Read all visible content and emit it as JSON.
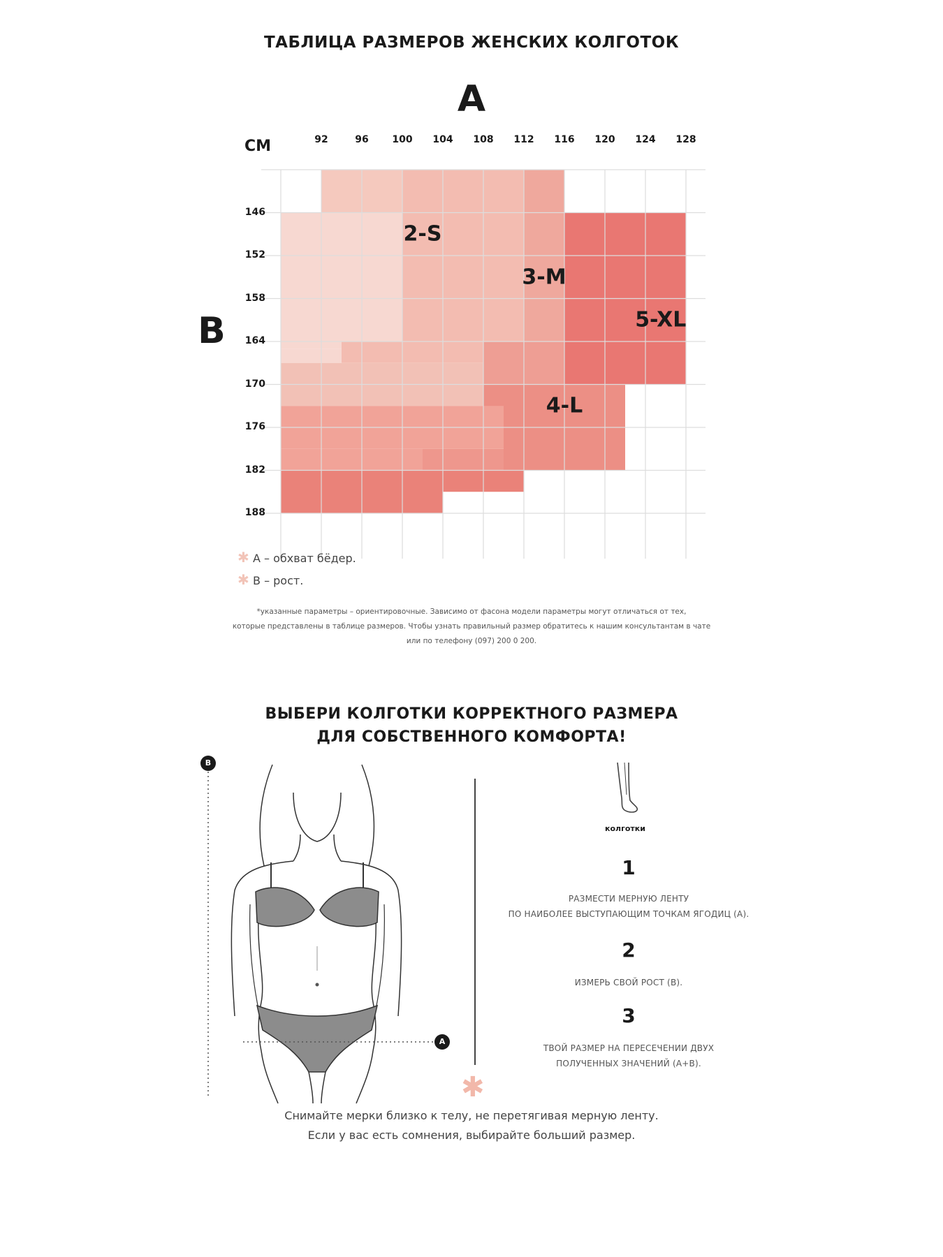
{
  "page": {
    "title": "ТАБЛИЦА РАЗМЕРОВ ЖЕНСКИХ КОЛГОТОК",
    "axis_a": "A",
    "axis_b": "B",
    "unit": "СМ"
  },
  "chart_data": {
    "type": "heatmap",
    "title": "ТАБЛИЦА РАЗМЕРОВ ЖЕНСКИХ КОЛГОТОК",
    "xlabel": "A",
    "ylabel": "B",
    "unit": "СМ",
    "x_ticks": [
      92,
      96,
      100,
      104,
      108,
      112,
      116,
      120,
      124,
      128
    ],
    "y_ticks": [
      146,
      152,
      158,
      164,
      170,
      176,
      182,
      188
    ],
    "grid": true,
    "sizes": [
      {
        "label": "2-S",
        "color": "#f7d8d1",
        "label_at": {
          "x": 102,
          "y": 149
        }
      },
      {
        "label": "3-M",
        "color": "#f1b6ab",
        "label_at": {
          "x": 114,
          "y": 155
        }
      },
      {
        "label": "4-L",
        "color": "#ec8f85",
        "label_at": {
          "x": 116,
          "y": 173
        }
      },
      {
        "label": "5-XL",
        "color": "#e97772",
        "label_at": {
          "x": 125.5,
          "y": 161
        }
      }
    ],
    "regions": [
      {
        "x": [
          88,
          100
        ],
        "y": [
          146,
          165
        ],
        "size": "2-S",
        "color": "#f7d8d1"
      },
      {
        "x": [
          88,
          94
        ],
        "y": [
          165,
          167
        ],
        "size": "2-S",
        "color": "#f7d8d1"
      },
      {
        "x": [
          92,
          100
        ],
        "y": [
          140,
          146
        ],
        "size": "2-S",
        "color": "#f5c9be"
      },
      {
        "x": [
          100,
          112
        ],
        "y": [
          140,
          164
        ],
        "size": "3-M",
        "color": "#f3bcb1"
      },
      {
        "x": [
          94,
          112
        ],
        "y": [
          164,
          167
        ],
        "size": "3-M",
        "color": "#f3bcb1"
      },
      {
        "x": [
          88,
          108
        ],
        "y": [
          167,
          173
        ],
        "size": "3-M",
        "color": "#f2c1b6"
      },
      {
        "x": [
          112,
          116
        ],
        "y": [
          140,
          170
        ],
        "size": "3-M",
        "color": "#efa89d"
      },
      {
        "x": [
          108,
          116
        ],
        "y": [
          164,
          170
        ],
        "size": "4-L",
        "color": "#ee9e94"
      },
      {
        "x": [
          116,
          128
        ],
        "y": [
          146,
          170
        ],
        "size": "5-XL",
        "color": "#e97772"
      },
      {
        "x": [
          108,
          122
        ],
        "y": [
          170,
          176
        ],
        "size": "4-L",
        "color": "#ec8f85"
      },
      {
        "x": [
          88,
          110
        ],
        "y": [
          173,
          179
        ],
        "size": "4-L",
        "color": "#f1a398"
      },
      {
        "x": [
          110,
          122
        ],
        "y": [
          176,
          182
        ],
        "size": "4-L",
        "color": "#ec8f85"
      },
      {
        "x": [
          88,
          102
        ],
        "y": [
          179,
          182
        ],
        "size": "4-L",
        "color": "#f1a398"
      },
      {
        "x": [
          102,
          110
        ],
        "y": [
          179,
          182
        ],
        "size": "4-L",
        "color": "#ee978d"
      },
      {
        "x": [
          88,
          104
        ],
        "y": [
          182,
          188
        ],
        "size": "5-XL",
        "color": "#ea8279"
      },
      {
        "x": [
          104,
          112
        ],
        "y": [
          182,
          185
        ],
        "size": "5-XL",
        "color": "#ea8279"
      }
    ],
    "legend": [
      {
        "label": "A – обхват бёдер."
      },
      {
        "label": "B – рост."
      }
    ]
  },
  "footnote": [
    "*указанные параметры – ориентировочные. Зависимо от фасона модели параметры могут отличаться от тех,",
    "которые представлены в таблице размеров. Чтобы узнать правильный размер обратитесь к нашим консультантам в чате",
    "или по телефону (097) 200 0 200."
  ],
  "guide": {
    "subtitle_line1": "ВЫБЕРИ КОЛГОТКИ КОРРЕКТНОГО РАЗМЕРА",
    "subtitle_line2": "ДЛЯ СОБСТВЕННОГО КОМФОРТА!",
    "marker_a": "A",
    "marker_b": "B",
    "tights_label": "колготки",
    "steps": [
      {
        "number": "1",
        "line1": "РАЗМЕСТИ МЕРНУЮ ЛЕНТУ",
        "line2": "ПО НАИБОЛЕЕ ВЫСТУПАЮЩИМ ТОЧКАМ ЯГОДИЦ (A)."
      },
      {
        "number": "2",
        "line1": "ИЗМЕРЬ СВОЙ РОСТ (B).",
        "line2": ""
      },
      {
        "number": "3",
        "line1": "ТВОЙ РАЗМЕР НА ПЕРЕСЕЧЕНИИ ДВУХ",
        "line2": "ПОЛУЧЕННЫХ ЗНАЧЕНИЙ (A+B)."
      }
    ],
    "tip_line1": "Снимайте мерки близко к телу, не перетягивая мерную ленту.",
    "tip_line2": "Если у вас есть сомнения, выбирайте больший размер."
  },
  "colors": {
    "grid": "#dddddd",
    "accent": "#e97772",
    "figure_fill": "#8c8c8c"
  }
}
